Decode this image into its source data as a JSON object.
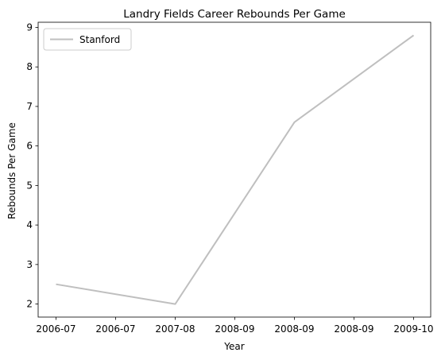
{
  "chart_data": {
    "type": "line",
    "title": "Landry Fields Career Rebounds Per Game",
    "xlabel": "Year",
    "ylabel": "Rebounds Per Game",
    "x": [
      "2006-07",
      "2007-08",
      "2008-09",
      "2009-10"
    ],
    "series": [
      {
        "name": "Stanford",
        "values": [
          2.5,
          2.0,
          6.6,
          8.8
        ],
        "color": "#bfbfbf"
      }
    ],
    "xticks": [
      "2006-07",
      "2006-07",
      "2007-08",
      "2008-09",
      "2008-09",
      "2008-09",
      "2009-10"
    ],
    "yticks": [
      2,
      3,
      4,
      5,
      6,
      7,
      8,
      9
    ],
    "ylim": [
      1.67,
      9.13
    ],
    "legend_position": "upper-left",
    "grid": false
  }
}
